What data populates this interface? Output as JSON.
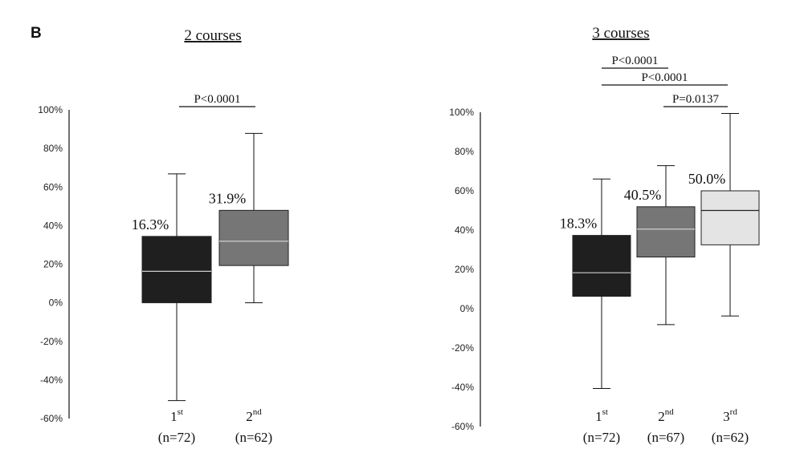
{
  "panel_label": "B",
  "chart_data": [
    {
      "type": "box",
      "title": "2 courses",
      "ylim": [
        -60,
        100
      ],
      "yticks": [
        100,
        80,
        60,
        40,
        20,
        0,
        -20,
        -40,
        -60
      ],
      "ytick_suffix": "%",
      "grid": false,
      "groups": [
        {
          "ord": "1",
          "sup": "st",
          "n_label": "(n=72)",
          "min": -50.7,
          "q1": 0,
          "median": 16.3,
          "q3": 34.4,
          "max": 66.8,
          "median_label": "16.3%",
          "color": "#1f1f1f"
        },
        {
          "ord": "2",
          "sup": "nd",
          "n_label": "(n=62)",
          "min": 0,
          "q1": 19.3,
          "median": 31.9,
          "q3": 47.9,
          "max": 87.8,
          "median_label": "31.9%",
          "color": "#767676"
        }
      ],
      "comparisons": [
        {
          "label": "P<0.0001",
          "from": 0,
          "to": 1
        }
      ]
    },
    {
      "type": "box",
      "title": "3 courses",
      "ylim": [
        -60,
        100
      ],
      "yticks": [
        100,
        80,
        60,
        40,
        20,
        0,
        -20,
        -40,
        -60
      ],
      "ytick_suffix": "%",
      "grid": false,
      "groups": [
        {
          "ord": "1",
          "sup": "st",
          "n_label": "(n=72)",
          "min": -40.6,
          "q1": 6.3,
          "median": 18.3,
          "q3": 37.3,
          "max": 66.0,
          "median_label": "18.3%",
          "color": "#1f1f1f"
        },
        {
          "ord": "2",
          "sup": "nd",
          "n_label": "(n=67)",
          "min": -8.1,
          "q1": 26.3,
          "median": 40.5,
          "q3": 51.9,
          "max": 72.8,
          "median_label": "40.5%",
          "color": "#767676"
        },
        {
          "ord": "3",
          "sup": "rd",
          "n_label": "(n=62)",
          "min": -3.7,
          "q1": 32.5,
          "median": 50.0,
          "q3": 60.0,
          "max": 99.4,
          "median_label": "50.0%",
          "color": "#e4e4e4"
        }
      ],
      "comparisons": [
        {
          "label": "P<0.0001",
          "from": 0,
          "to": 1
        },
        {
          "label": "P<0.0001",
          "from": 0,
          "to": 2
        },
        {
          "label": "P=0.0137",
          "from": 1,
          "to": 2
        }
      ]
    }
  ]
}
